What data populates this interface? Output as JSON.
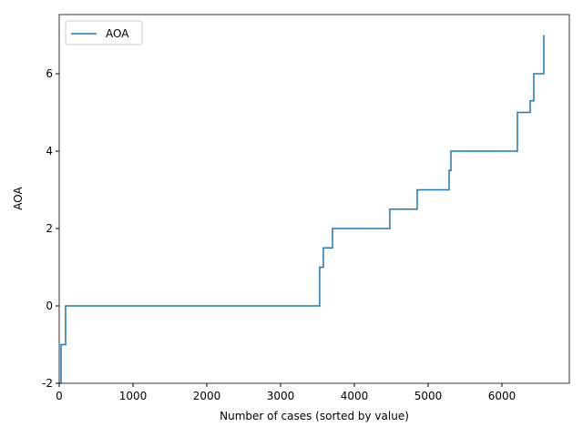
{
  "chart_data": {
    "type": "line",
    "xlabel": "Number of cases (sorted by value)",
    "ylabel": "AOA",
    "x": [
      0,
      25,
      25,
      86,
      86,
      3530,
      3530,
      3580,
      3580,
      3704,
      3704,
      4481,
      4481,
      4852,
      4852,
      5284,
      5284,
      5309,
      5309,
      6210,
      6210,
      6383,
      6383,
      6432,
      6432,
      6568,
      6568
    ],
    "series": [
      {
        "name": "AOA",
        "color": "#1f77b4",
        "values": [
          -2,
          -2,
          -1,
          -1,
          0,
          0,
          1,
          1,
          1.5,
          1.5,
          2,
          2,
          2.5,
          2.5,
          3,
          3,
          3.5,
          3.5,
          4,
          4,
          5,
          5,
          5.3,
          5.3,
          6,
          6,
          7
        ]
      }
    ],
    "xlim": [
      0,
      6914
    ],
    "ylim": [
      -2,
      7.53
    ],
    "xticks": [
      0,
      1000,
      2000,
      3000,
      4000,
      5000,
      6000
    ],
    "yticks": [
      -2,
      0,
      2,
      4,
      6
    ],
    "legend": "upper left"
  }
}
